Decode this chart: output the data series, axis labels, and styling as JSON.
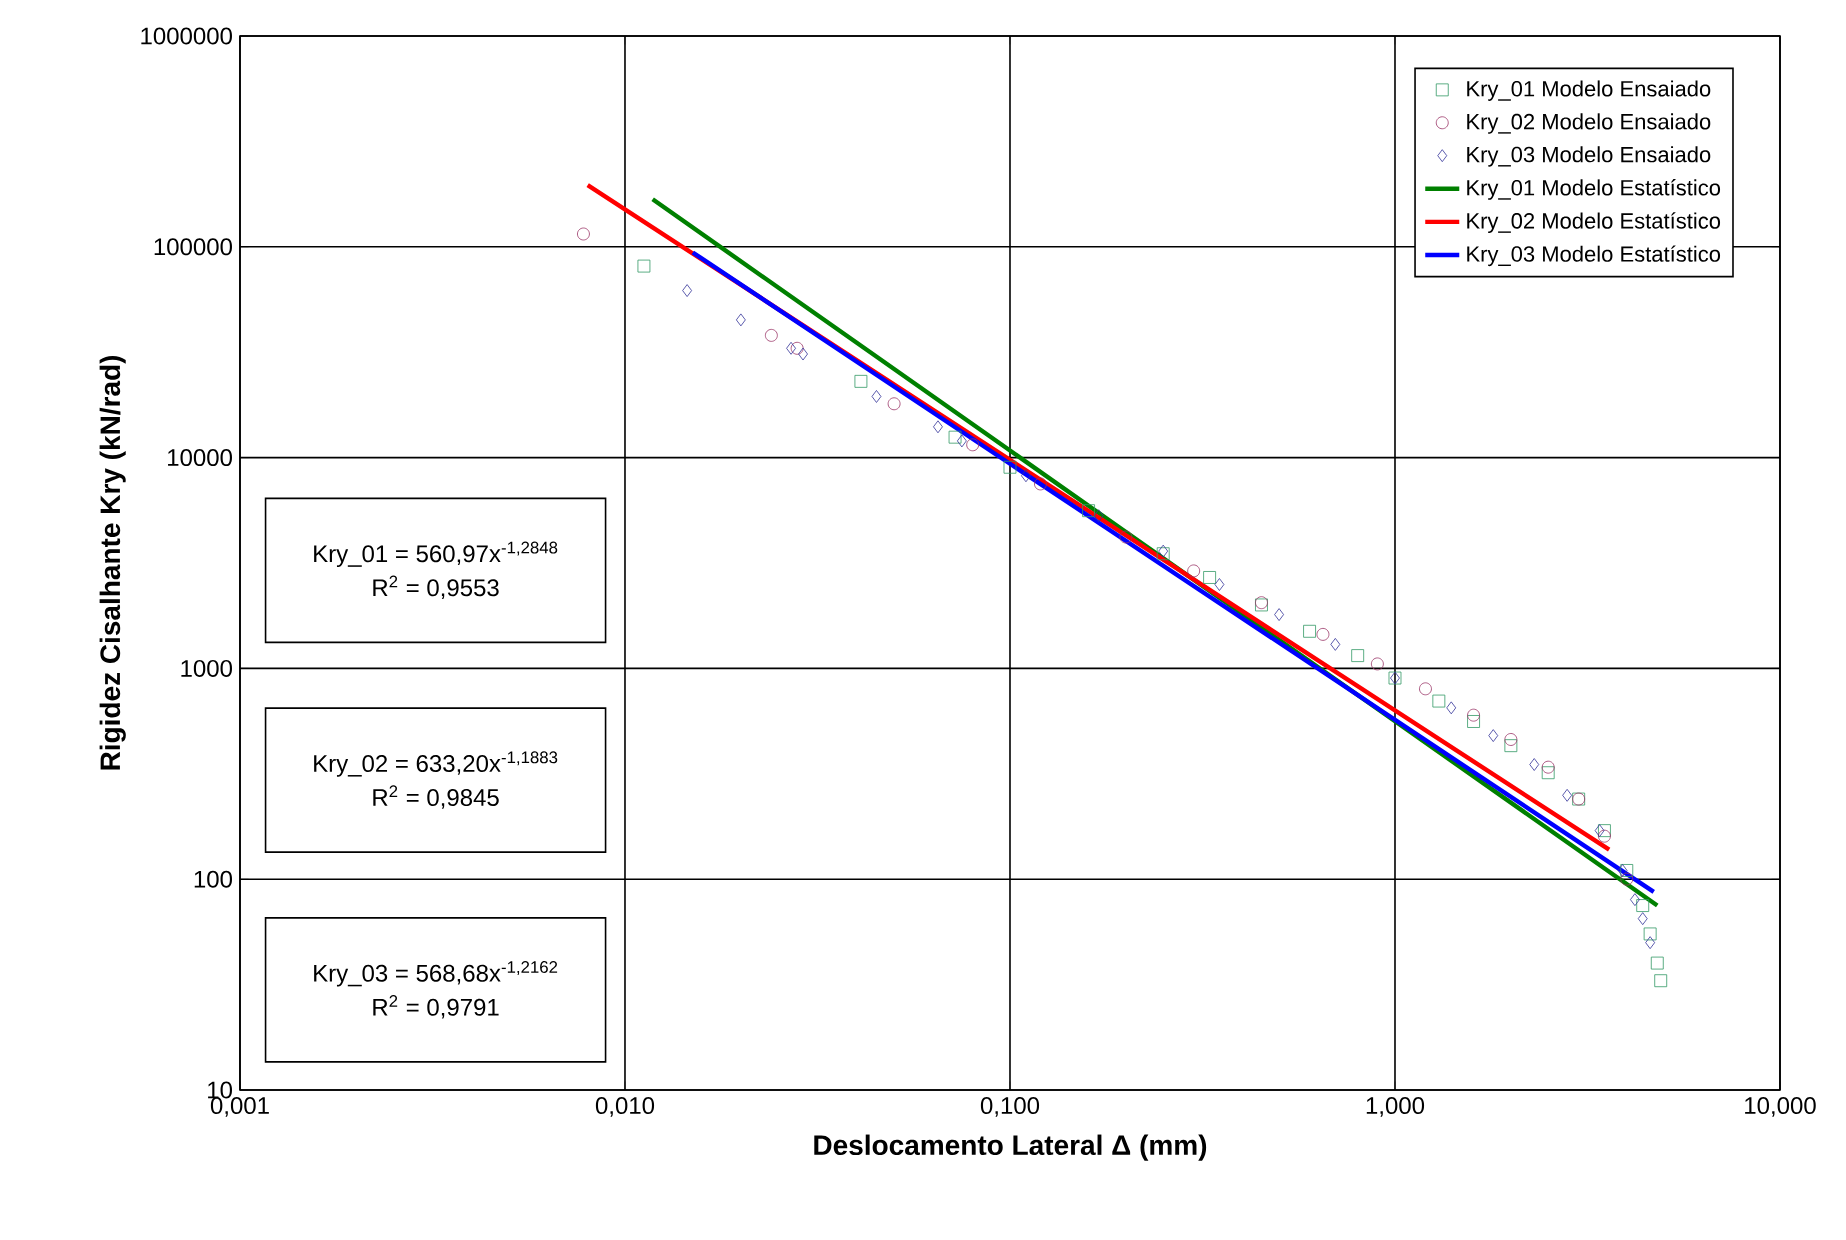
{
  "chart_data": {
    "type": "scatter",
    "xlabel": "Deslocamento Lateral Δ (mm)",
    "ylabel": "Rigidez Cisalhante Kry (kN/rad)",
    "log": "xy",
    "grid": true,
    "legend": "top right",
    "xlim": [
      0.001,
      10
    ],
    "xticks": [
      {
        "value": 0.001,
        "label": "0,001"
      },
      {
        "value": 0.01,
        "label": "0,010"
      },
      {
        "value": 0.1,
        "label": "0,100"
      },
      {
        "value": 1,
        "label": "1,000"
      },
      {
        "value": 10,
        "label": "10,000"
      }
    ],
    "ylim": [
      10,
      1000000
    ],
    "yticks": [
      10,
      100,
      1000,
      10000,
      100000,
      1000000
    ],
    "annotations": [
      "Kry_01 = 560,97x$^{-1,2848}$",
      "R$^{2}$ = 0,9553",
      "Kry_02 = 633,20x$^{-1,1883}$",
      "R$^{2}$ = 0,9845",
      "Kry_03 = 568,68x$^{-1,2162}$",
      "R$^{2}$ = 0,9791"
    ],
    "series": [
      {
        "name": "Kry_01 Modelo Ensaiado",
        "marker": "square",
        "color": "#339966",
        "x": [
          0.0112,
          0.041,
          0.072,
          0.1,
          0.16,
          0.25,
          0.33,
          0.45,
          0.6,
          0.8,
          1.0,
          1.3,
          1.6,
          2.0,
          2.5,
          3.0,
          3.5,
          4.0,
          4.4,
          4.6,
          4.8,
          4.9
        ],
        "values": [
          81000,
          23000,
          12500,
          9000,
          5600,
          3500,
          2700,
          2000,
          1500,
          1150,
          900,
          700,
          560,
          430,
          320,
          240,
          170,
          110,
          75,
          55,
          40,
          33
        ]
      },
      {
        "name": "Kry_02 Modelo Ensaiado",
        "marker": "circle",
        "color": "#993366",
        "x": [
          0.0078,
          0.024,
          0.028,
          0.05,
          0.08,
          0.12,
          0.2,
          0.3,
          0.45,
          0.65,
          0.9,
          1.2,
          1.6,
          2.0,
          2.5,
          3.0,
          3.5,
          4.0
        ],
        "values": [
          115000,
          38000,
          33000,
          18000,
          11500,
          7500,
          4200,
          2900,
          2050,
          1450,
          1050,
          800,
          600,
          460,
          340,
          240,
          160,
          100
        ]
      },
      {
        "name": "Kry_03 Modelo Ensaiado",
        "marker": "diamond",
        "color": "#333399",
        "x": [
          0.0145,
          0.02,
          0.027,
          0.029,
          0.045,
          0.065,
          0.075,
          0.11,
          0.17,
          0.25,
          0.35,
          0.5,
          0.7,
          1.0,
          1.4,
          1.8,
          2.3,
          2.8,
          3.4,
          3.9,
          4.2,
          4.4,
          4.6
        ],
        "values": [
          62000,
          45000,
          33000,
          31000,
          19500,
          14000,
          12000,
          8200,
          5300,
          3600,
          2500,
          1800,
          1300,
          900,
          650,
          480,
          350,
          250,
          170,
          110,
          80,
          65,
          50
        ]
      },
      {
        "name": "Kry_01 Modelo Estatístico",
        "type": "line",
        "marker": "none",
        "line_style": "solid",
        "color": "#008000",
        "x": [
          0.0118,
          0.1,
          4.8
        ],
        "values": [
          168000,
          10800,
          75
        ]
      },
      {
        "name": "Kry_02 Modelo Estatístico",
        "type": "line",
        "marker": "none",
        "line_style": "solid",
        "color": "#ff0000",
        "x": [
          0.008,
          0.1,
          3.6
        ],
        "values": [
          196000,
          9750,
          138
        ]
      },
      {
        "name": "Kry_03 Modelo Estatístico",
        "type": "line",
        "marker": "none",
        "line_style": "solid",
        "color": "#0000ff",
        "x": [
          0.015,
          0.1,
          4.7
        ],
        "values": [
          94000,
          9350,
          87
        ]
      }
    ]
  }
}
